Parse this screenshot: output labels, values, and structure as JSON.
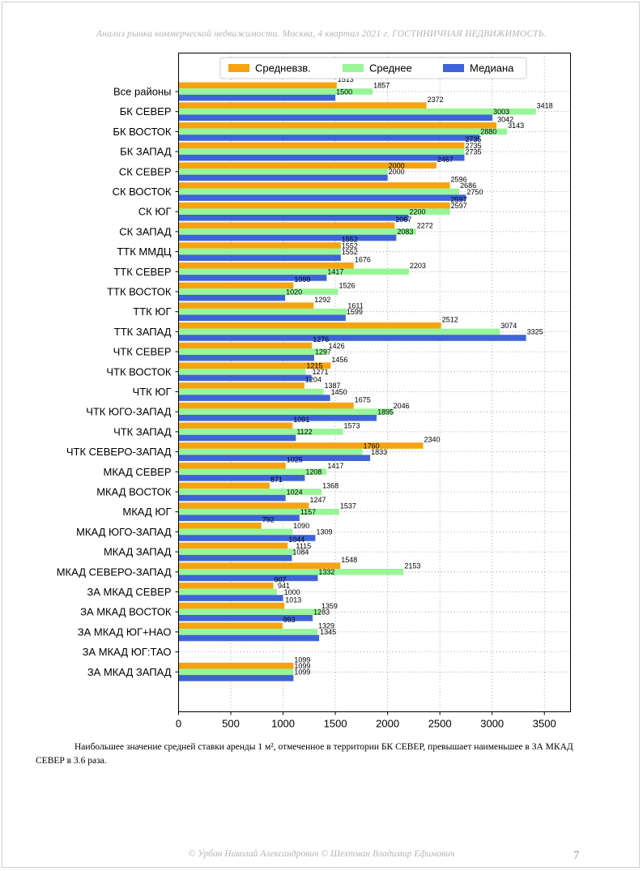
{
  "header": {
    "text": "Анализ рынка коммерческой недвижимости.   Москва, 4 квартал 2021 г.   ГОСТИНИЧНАЯ НЕДВИЖИМОСТЬ."
  },
  "caption": {
    "text": "Наибольшее значение средней ставки аренды 1 м², отмеченное в территории БК СЕВЕР, превышает наименьшее в ЗА МКАД СЕВЕР в 3.6 раза."
  },
  "footer": {
    "text": "© Урбан Николай Александрович   © Шехтман Владимир Ефимович",
    "page_number": "7"
  },
  "chart_data": {
    "type": "bar",
    "orientation": "horizontal",
    "title": "",
    "xlabel": "",
    "ylabel": "",
    "xlim": [
      0,
      3750
    ],
    "x_ticks": [
      0,
      500,
      1000,
      1500,
      2000,
      2500,
      3000,
      3500
    ],
    "grid": true,
    "legend_position": "top",
    "categories": [
      "Все районы",
      "БК СЕВЕР",
      "БК ВОСТОК",
      "БК ЗАПАД",
      "СК СЕВЕР",
      "СК ВОСТОК",
      "СК ЮГ",
      "СК ЗАПАД",
      "ТТК ММДЦ",
      "ТТК СЕВЕР",
      "ТТК ВОСТОК",
      "ТТК ЮГ",
      "ТТК ЗАПАД",
      "ЧТК СЕВЕР",
      "ЧТК ВОСТОК",
      "ЧТК ЮГ",
      "ЧТК ЮГО-ЗАПАД",
      "ЧТК ЗАПАД",
      "ЧТК СЕВЕРО-ЗАПАД",
      "МКАД СЕВЕР",
      "МКАД ВОСТОК",
      "МКАД ЮГ",
      "МКАД ЮГО-ЗАПАД",
      "МКАД ЗАПАД",
      "МКАД СЕВЕРО-ЗАПАД",
      "ЗА МКАД СЕВЕР",
      "ЗА МКАД ВОСТОК",
      "ЗА МКАД ЮГ+НАО",
      "ЗА МКАД ЮГ:ТАО",
      "ЗА МКАД ЗАПАД"
    ],
    "series": [
      {
        "name": "Средневзв.",
        "color": "#f5a40f",
        "values": [
          1513,
          2372,
          3042,
          2735,
          2467,
          2596,
          2597,
          2067,
          1552,
          1676,
          1099,
          1292,
          2512,
          1276,
          1456,
          1204,
          1675,
          1091,
          2340,
          1025,
          871,
          1247,
          792,
          1044,
          1548,
          907,
          1013,
          993,
          null,
          1099
        ]
      },
      {
        "name": "Среднее",
        "color": "#98f598",
        "values": [
          1857,
          3418,
          3143,
          2735,
          2000,
          2686,
          2597,
          2272,
          1552,
          2203,
          1526,
          1611,
          3074,
          1426,
          1215,
          1387,
          2046,
          1573,
          1760,
          1417,
          1368,
          1537,
          1090,
          1115,
          2153,
          941,
          1359,
          1329,
          null,
          1099
        ]
      },
      {
        "name": "Медиана",
        "color": "#3f64d8",
        "values": [
          1500,
          3003,
          2880,
          2735,
          2000,
          2750,
          2200,
          2083,
          1552,
          1417,
          1020,
          1599,
          3325,
          1297,
          1271,
          1450,
          1895,
          1122,
          1833,
          1208,
          1024,
          1157,
          1309,
          1084,
          1332,
          1000,
          1283,
          1345,
          null,
          1099
        ]
      }
    ]
  }
}
